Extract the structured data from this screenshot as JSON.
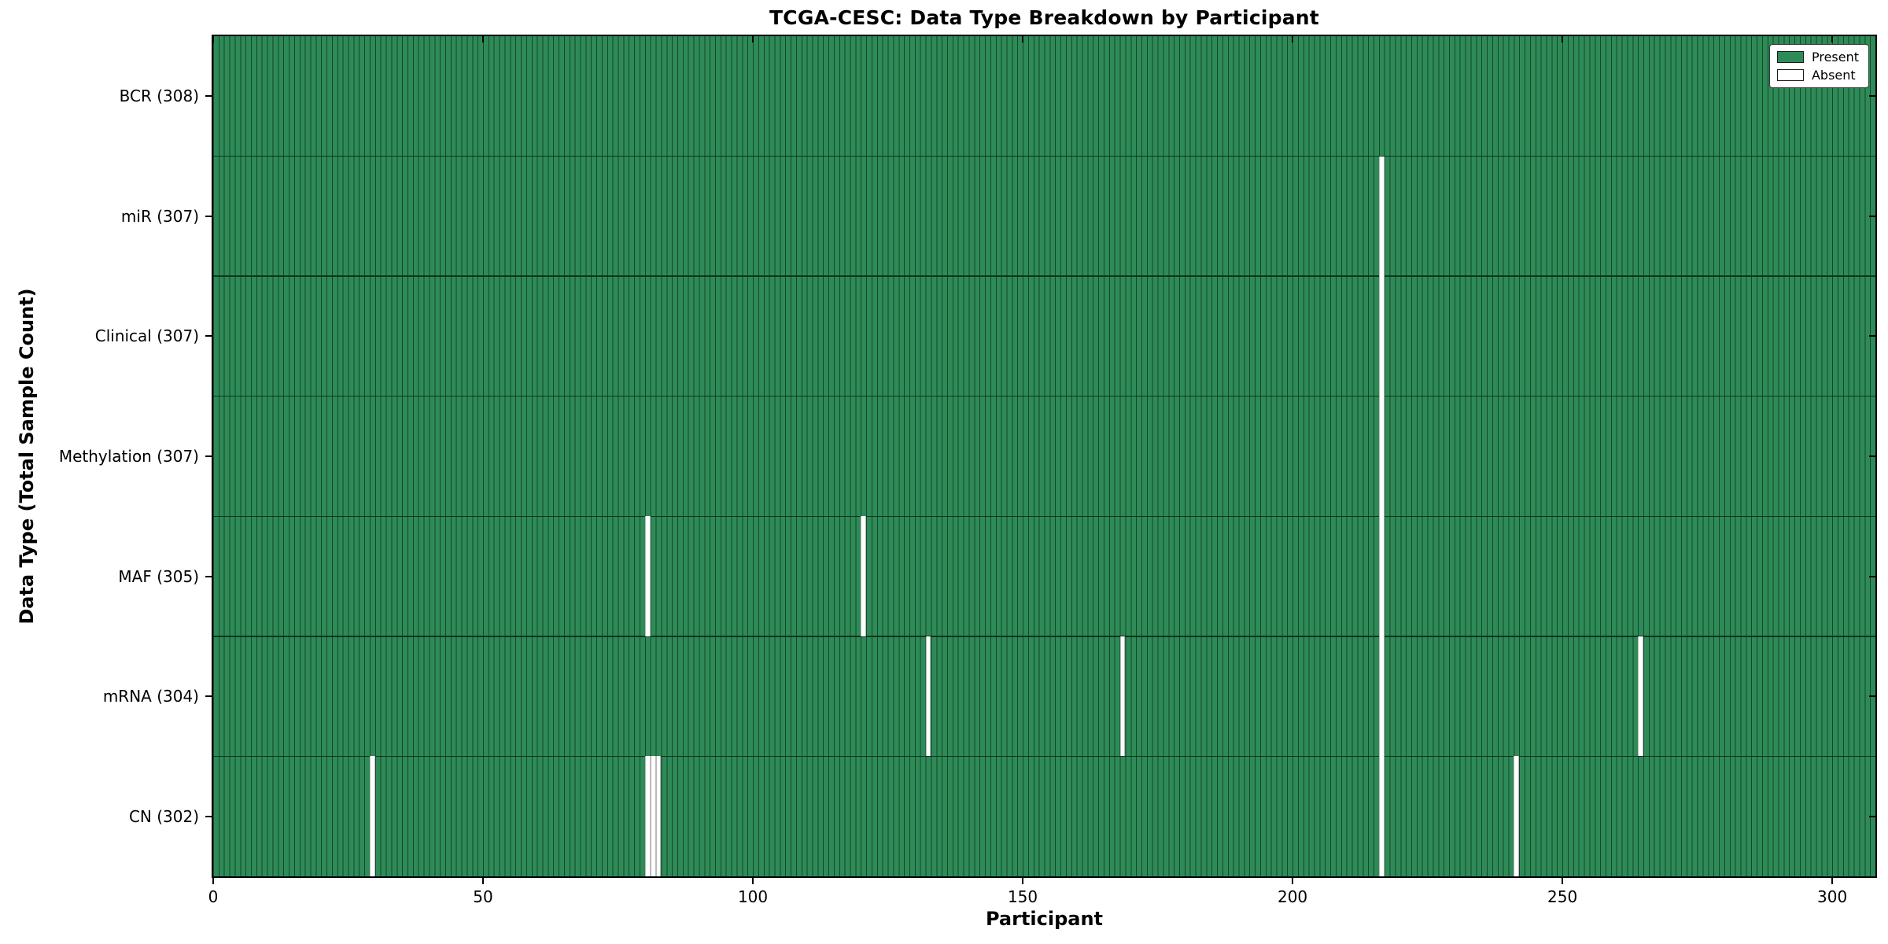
{
  "colors": {
    "present": "#2e8b57",
    "absent": "#ffffff",
    "bar_edge": "#14462b",
    "text": "#000000"
  },
  "chart_data": {
    "type": "heatmap",
    "title": "TCGA-CESC: Data Type Breakdown by Participant",
    "xlabel": "Participant",
    "ylabel": "Data Type (Total Sample Count)",
    "x_ticks": [
      0,
      50,
      100,
      150,
      200,
      250,
      300
    ],
    "xlim": [
      0,
      308
    ],
    "n_participants": 308,
    "grid": false,
    "legend": [
      "Present",
      "Absent"
    ],
    "legend_position": "upper right",
    "rows": [
      {
        "label": "BCR (308)",
        "data_type": "BCR",
        "total": 308,
        "absent_participants": []
      },
      {
        "label": "miR (307)",
        "data_type": "miR",
        "total": 307,
        "absent_participants": [
          216
        ]
      },
      {
        "label": "Clinical (307)",
        "data_type": "Clinical",
        "total": 307,
        "absent_participants": [
          216
        ]
      },
      {
        "label": "Methylation (307)",
        "data_type": "Methylation",
        "total": 307,
        "absent_participants": [
          216
        ]
      },
      {
        "label": "MAF (305)",
        "data_type": "MAF",
        "total": 305,
        "absent_participants": [
          80,
          120,
          216
        ]
      },
      {
        "label": "mRNA (304)",
        "data_type": "mRNA",
        "total": 304,
        "absent_participants": [
          132,
          168,
          216,
          264
        ]
      },
      {
        "label": "CN (302)",
        "data_type": "CN",
        "total": 302,
        "absent_participants": [
          29,
          80,
          81,
          82,
          216,
          241
        ]
      }
    ]
  }
}
